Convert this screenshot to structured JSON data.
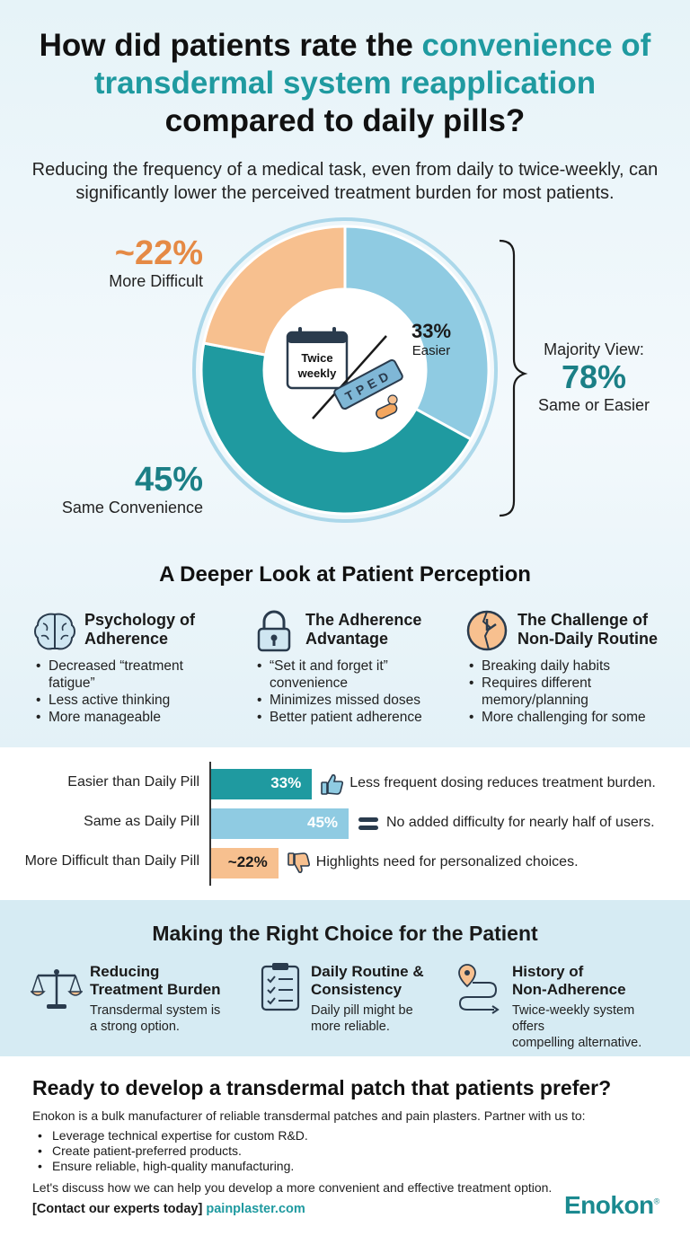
{
  "title": {
    "part1": "How did patients rate the ",
    "highlight": "convenience of transdermal system reapplication",
    "part2": "compared to daily pills?"
  },
  "subtitle": "Reducing the frequency of a medical task, even from daily to twice-weekly, can significantly lower the perceived treatment burden for most patients.",
  "center_icons": {
    "calendar_text_1": "Twice",
    "calendar_text_2": "weekly",
    "pillbox_letters": "TPED"
  },
  "majority": {
    "label": "Majority View:",
    "value": "78%",
    "desc": "Same or Easier"
  },
  "colors": {
    "easier": "#8fcbe2",
    "same": "#1f9aa0",
    "difficult": "#f7c08f",
    "difficult_text": "#e58a45",
    "teal_text": "#1b7f86"
  },
  "chart_data": [
    {
      "type": "pie",
      "title": "Patient rating of transdermal system reapplication convenience vs daily pills",
      "slices": [
        {
          "name": "Easier",
          "label": "33%",
          "value": 33
        },
        {
          "name": "Same Convenience",
          "label": "45%",
          "value": 45
        },
        {
          "name": "More Difficult",
          "label": "~22%",
          "value": 22
        }
      ]
    },
    {
      "type": "bar",
      "orientation": "horizontal",
      "categories": [
        "Easier than Daily Pill",
        "Same as Daily Pill",
        "More Difficult than Daily Pill"
      ],
      "values": [
        33,
        45,
        22
      ],
      "value_labels": [
        "33%",
        "45%",
        "~22%"
      ],
      "notes": [
        "Less frequent dosing reduces treatment burden.",
        "No added difficulty for nearly half of users.",
        "Highlights need for personalized choices."
      ]
    }
  ],
  "perception": {
    "title": "A Deeper Look at Patient Perception",
    "columns": [
      {
        "head_1": "Psychology of",
        "head_2": "Adherence",
        "icon": "brain-icon",
        "bullets": [
          "Decreased “treatment fatigue”",
          "Less active thinking",
          "More manageable"
        ]
      },
      {
        "head_1": "The Adherence",
        "head_2": "Advantage",
        "icon": "lock-icon",
        "bullets": [
          "“Set it and forget it” convenience",
          "Minimizes missed doses",
          "Better patient adherence"
        ]
      },
      {
        "head_1": "The Challenge of",
        "head_2": "Non-Daily Routine",
        "icon": "broken-clock-icon",
        "bullets": [
          "Breaking daily habits",
          "Requires different memory/planning",
          "More challenging for some"
        ]
      }
    ]
  },
  "choice": {
    "title": "Making the Right Choice for the Patient",
    "items": [
      {
        "head_1": "Reducing",
        "head_2": "Treatment Burden",
        "desc_1": "Transdermal system is",
        "desc_2": "a strong option.",
        "icon": "scales-icon"
      },
      {
        "head_1": "Daily Routine &",
        "head_2": "Consistency",
        "desc_1": "Daily pill might be",
        "desc_2": "more reliable.",
        "icon": "checklist-icon"
      },
      {
        "head_1": "History of",
        "head_2": "Non-Adherence",
        "desc_1": "Twice-weekly system offers",
        "desc_2": "compelling alternative.",
        "icon": "route-icon"
      }
    ]
  },
  "cta": {
    "title": "Ready to develop a transdermal patch that patients prefer?",
    "intro": "Enokon is a bulk manufacturer of reliable transdermal patches and pain plasters. Partner with us to:",
    "bullets": [
      "Leverage technical expertise for custom R&D.",
      "Create patient-preferred products.",
      "Ensure reliable, high-quality manufacturing."
    ],
    "closing": "Let's discuss how we can help you develop a more convenient and effective treatment option.",
    "contact": "[Contact our experts today]",
    "url": "painplaster.com",
    "logo": "Enokon",
    "logo_mark": "®"
  }
}
